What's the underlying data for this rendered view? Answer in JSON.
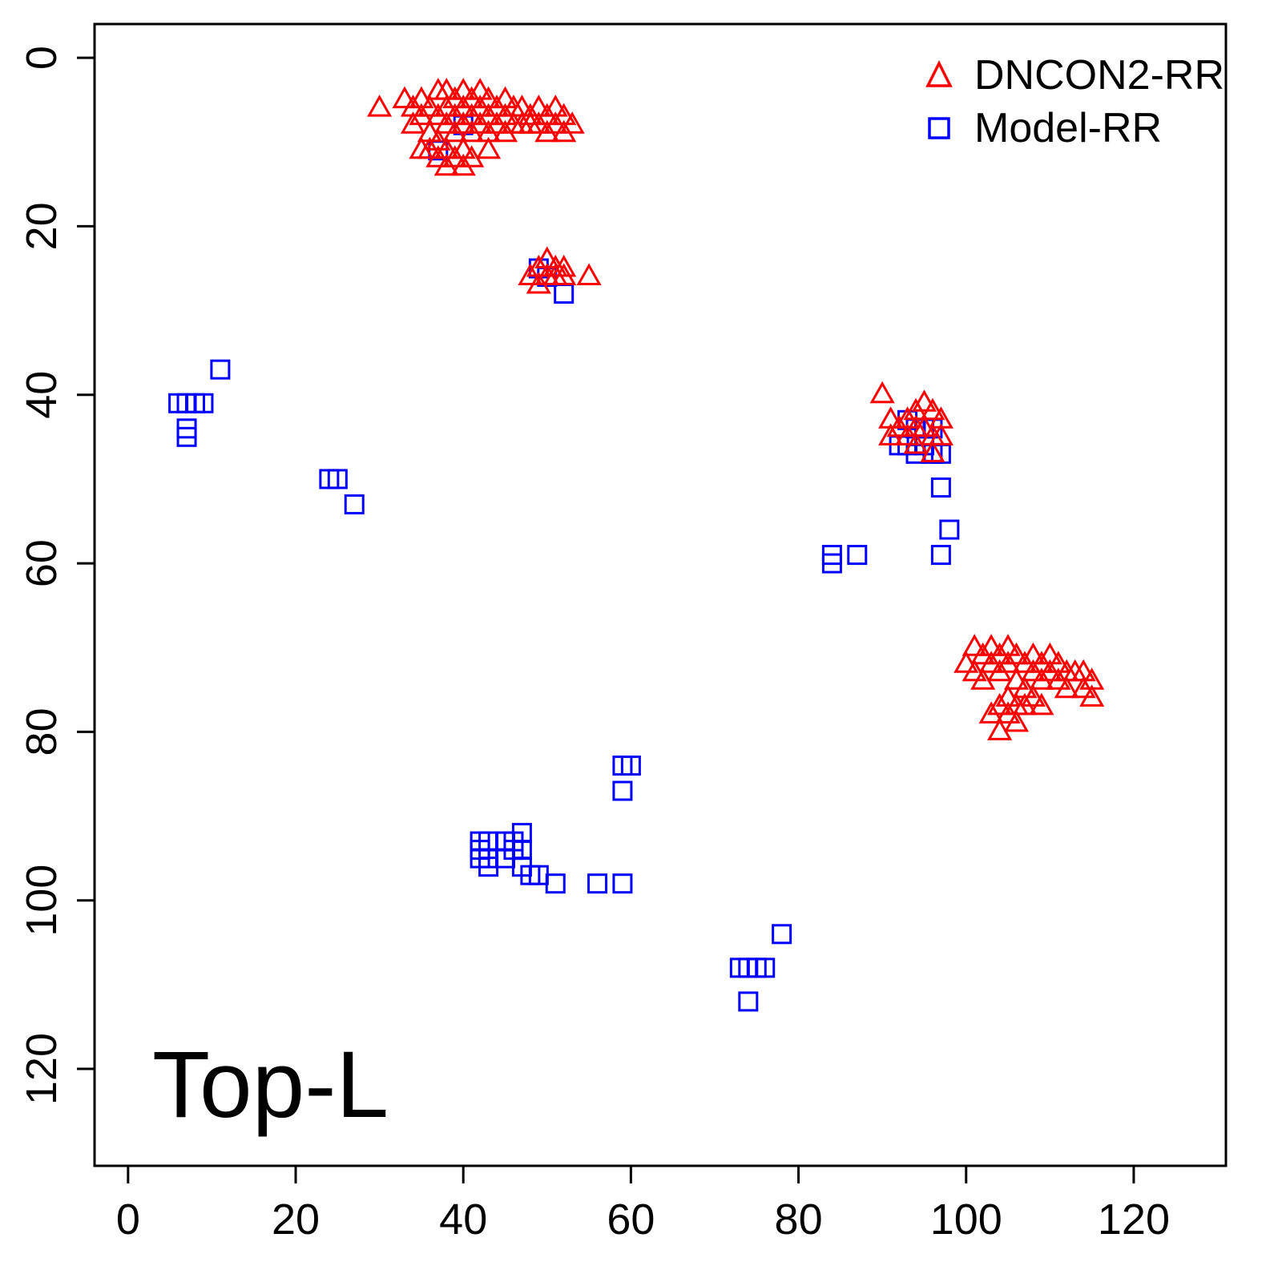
{
  "chart_data": {
    "type": "scatter",
    "title": "Top-L",
    "xlabel": "",
    "ylabel": "",
    "xlim": [
      0,
      130
    ],
    "ylim_inverted": [
      0,
      130
    ],
    "x_ticks": [
      0,
      20,
      40,
      60,
      80,
      100,
      120
    ],
    "y_ticks": [
      0,
      20,
      40,
      60,
      80,
      100,
      120
    ],
    "grid": "off",
    "legend_position": "top-right",
    "series": [
      {
        "name": "Model-RR",
        "marker": "open-square",
        "color": "#0000FF",
        "points": [
          [
            6,
            41
          ],
          [
            7,
            41
          ],
          [
            8,
            41
          ],
          [
            9,
            41
          ],
          [
            7,
            44
          ],
          [
            7,
            45
          ],
          [
            11,
            37
          ],
          [
            24,
            50
          ],
          [
            25,
            50
          ],
          [
            27,
            53
          ],
          [
            37,
            11
          ],
          [
            40,
            8
          ],
          [
            49,
            25
          ],
          [
            50,
            26
          ],
          [
            52,
            28
          ],
          [
            92,
            46
          ],
          [
            93,
            43
          ],
          [
            93,
            46
          ],
          [
            94,
            44
          ],
          [
            94,
            47
          ],
          [
            95,
            44
          ],
          [
            95,
            46
          ],
          [
            96,
            44
          ],
          [
            96,
            47
          ],
          [
            97,
            47
          ],
          [
            97,
            51
          ],
          [
            98,
            56
          ],
          [
            97,
            59
          ],
          [
            84,
            59
          ],
          [
            84,
            60
          ],
          [
            87,
            59
          ],
          [
            59,
            84
          ],
          [
            60,
            84
          ],
          [
            59,
            87
          ],
          [
            42,
            93
          ],
          [
            42,
            94
          ],
          [
            42,
            95
          ],
          [
            43,
            93
          ],
          [
            43,
            95
          ],
          [
            43,
            96
          ],
          [
            45,
            93
          ],
          [
            45,
            95
          ],
          [
            46,
            93
          ],
          [
            46,
            94
          ],
          [
            47,
            92
          ],
          [
            47,
            94
          ],
          [
            47,
            96
          ],
          [
            48,
            97
          ],
          [
            49,
            97
          ],
          [
            51,
            98
          ],
          [
            56,
            98
          ],
          [
            59,
            98
          ],
          [
            73,
            108
          ],
          [
            74,
            108
          ],
          [
            75,
            108
          ],
          [
            76,
            108
          ],
          [
            78,
            104
          ],
          [
            74,
            112
          ]
        ]
      },
      {
        "name": "DNCON2-RR",
        "marker": "open-triangle",
        "color": "#FF0000",
        "points": [
          [
            30,
            6
          ],
          [
            33,
            5
          ],
          [
            34,
            6
          ],
          [
            34,
            8
          ],
          [
            35,
            5
          ],
          [
            35,
            7
          ],
          [
            35,
            11
          ],
          [
            36,
            6
          ],
          [
            36,
            9
          ],
          [
            36,
            11
          ],
          [
            37,
            4
          ],
          [
            37,
            7
          ],
          [
            37,
            10
          ],
          [
            37,
            12
          ],
          [
            38,
            4
          ],
          [
            38,
            6
          ],
          [
            38,
            8
          ],
          [
            38,
            11
          ],
          [
            38,
            13
          ],
          [
            39,
            5
          ],
          [
            39,
            7
          ],
          [
            39,
            9
          ],
          [
            39,
            12
          ],
          [
            40,
            4
          ],
          [
            40,
            6
          ],
          [
            40,
            8
          ],
          [
            40,
            11
          ],
          [
            40,
            13
          ],
          [
            41,
            5
          ],
          [
            41,
            7
          ],
          [
            41,
            9
          ],
          [
            41,
            12
          ],
          [
            42,
            4
          ],
          [
            42,
            6
          ],
          [
            42,
            8
          ],
          [
            43,
            5
          ],
          [
            43,
            7
          ],
          [
            43,
            9
          ],
          [
            43,
            11
          ],
          [
            44,
            6
          ],
          [
            44,
            8
          ],
          [
            45,
            5
          ],
          [
            45,
            7
          ],
          [
            45,
            9
          ],
          [
            46,
            6
          ],
          [
            46,
            8
          ],
          [
            47,
            6
          ],
          [
            47,
            8
          ],
          [
            48,
            7
          ],
          [
            48,
            8
          ],
          [
            49,
            6
          ],
          [
            49,
            8
          ],
          [
            50,
            7
          ],
          [
            50,
            9
          ],
          [
            51,
            6
          ],
          [
            51,
            8
          ],
          [
            52,
            7
          ],
          [
            52,
            9
          ],
          [
            53,
            8
          ],
          [
            48,
            26
          ],
          [
            49,
            25
          ],
          [
            49,
            27
          ],
          [
            50,
            24
          ],
          [
            50,
            26
          ],
          [
            51,
            25
          ],
          [
            51,
            26
          ],
          [
            52,
            25
          ],
          [
            52,
            26
          ],
          [
            55,
            26
          ],
          [
            90,
            40
          ],
          [
            91,
            43
          ],
          [
            91,
            45
          ],
          [
            92,
            44
          ],
          [
            93,
            43
          ],
          [
            93,
            45
          ],
          [
            94,
            42
          ],
          [
            94,
            44
          ],
          [
            94,
            46
          ],
          [
            95,
            41
          ],
          [
            95,
            44
          ],
          [
            96,
            42
          ],
          [
            96,
            45
          ],
          [
            96,
            47
          ],
          [
            97,
            43
          ],
          [
            97,
            45
          ],
          [
            100,
            72
          ],
          [
            101,
            70
          ],
          [
            101,
            73
          ],
          [
            102,
            71
          ],
          [
            102,
            74
          ],
          [
            103,
            70
          ],
          [
            103,
            72
          ],
          [
            103,
            78
          ],
          [
            104,
            71
          ],
          [
            104,
            73
          ],
          [
            104,
            77
          ],
          [
            104,
            80
          ],
          [
            105,
            70
          ],
          [
            105,
            72
          ],
          [
            105,
            76
          ],
          [
            105,
            78
          ],
          [
            106,
            71
          ],
          [
            106,
            74
          ],
          [
            106,
            77
          ],
          [
            106,
            79
          ],
          [
            107,
            72
          ],
          [
            107,
            75
          ],
          [
            107,
            77
          ],
          [
            108,
            71
          ],
          [
            108,
            73
          ],
          [
            108,
            76
          ],
          [
            109,
            72
          ],
          [
            109,
            74
          ],
          [
            109,
            77
          ],
          [
            110,
            71
          ],
          [
            110,
            73
          ],
          [
            111,
            72
          ],
          [
            111,
            74
          ],
          [
            112,
            73
          ],
          [
            112,
            75
          ],
          [
            113,
            73
          ],
          [
            114,
            73
          ],
          [
            114,
            75
          ],
          [
            115,
            74
          ],
          [
            115,
            76
          ]
        ]
      }
    ]
  },
  "legend": {
    "items": [
      {
        "label": "DNCON2-RR"
      },
      {
        "label": "Model-RR"
      }
    ]
  }
}
